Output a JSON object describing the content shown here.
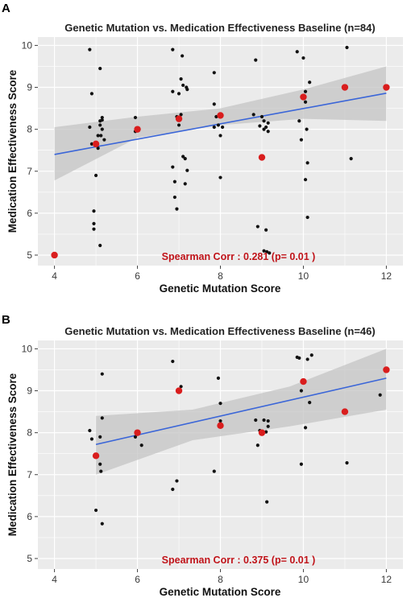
{
  "chart_data": [
    {
      "type": "scatter",
      "panel_label": "A",
      "title": "Genetic Mutation vs. Medication Effectiveness Baseline (n=84)",
      "xlabel": "Genetic Mutation Score",
      "ylabel": "Medication Effectiveness Score",
      "xlim": [
        3.6,
        12.4
      ],
      "ylim": [
        4.75,
        10.2
      ],
      "xticks": [
        4,
        6,
        8,
        10,
        12
      ],
      "yticks": [
        5,
        6,
        7,
        8,
        9,
        10
      ],
      "grid": true,
      "background": "#ebebeb",
      "annotation": "Spearman Corr :  0.281 (p= 0.01 )",
      "trend": {
        "x0": 4,
        "y0": 7.4,
        "x1": 12,
        "y1": 8.86,
        "ci_lower": [
          6.78,
          7.8,
          8.1,
          8.25,
          8.2
        ],
        "ci_upper": [
          8.05,
          8.3,
          8.5,
          8.95,
          9.5
        ],
        "ci_x": [
          4,
          6,
          8,
          10,
          12
        ],
        "color": "#3b66d8"
      },
      "points": [
        {
          "x": 4.85,
          "y": 9.9
        },
        {
          "x": 4.85,
          "y": 8.05
        },
        {
          "x": 4.9,
          "y": 8.85
        },
        {
          "x": 4.9,
          "y": 7.65
        },
        {
          "x": 4.95,
          "y": 6.05
        },
        {
          "x": 4.95,
          "y": 5.75
        },
        {
          "x": 4.95,
          "y": 5.62
        },
        {
          "x": 5.0,
          "y": 6.9
        },
        {
          "x": 5.05,
          "y": 7.85
        },
        {
          "x": 5.05,
          "y": 7.55
        },
        {
          "x": 5.1,
          "y": 9.45
        },
        {
          "x": 5.1,
          "y": 8.2
        },
        {
          "x": 5.1,
          "y": 8.1
        },
        {
          "x": 5.1,
          "y": 5.23
        },
        {
          "x": 5.12,
          "y": 7.85
        },
        {
          "x": 5.15,
          "y": 8.28
        },
        {
          "x": 5.15,
          "y": 8.22
        },
        {
          "x": 5.15,
          "y": 8.0
        },
        {
          "x": 5.2,
          "y": 7.75
        },
        {
          "x": 5.95,
          "y": 8.28
        },
        {
          "x": 5.95,
          "y": 7.95
        },
        {
          "x": 6.85,
          "y": 9.9
        },
        {
          "x": 6.85,
          "y": 8.9
        },
        {
          "x": 6.85,
          "y": 7.1
        },
        {
          "x": 6.9,
          "y": 6.75
        },
        {
          "x": 6.9,
          "y": 6.38
        },
        {
          "x": 6.95,
          "y": 6.1
        },
        {
          "x": 6.95,
          "y": 8.3
        },
        {
          "x": 7.0,
          "y": 8.1
        },
        {
          "x": 7.0,
          "y": 8.85
        },
        {
          "x": 7.05,
          "y": 9.2
        },
        {
          "x": 7.05,
          "y": 8.35
        },
        {
          "x": 7.08,
          "y": 9.75
        },
        {
          "x": 7.1,
          "y": 9.05
        },
        {
          "x": 7.1,
          "y": 7.35
        },
        {
          "x": 7.15,
          "y": 7.3
        },
        {
          "x": 7.15,
          "y": 6.7
        },
        {
          "x": 7.18,
          "y": 9.0
        },
        {
          "x": 7.2,
          "y": 8.95
        },
        {
          "x": 7.2,
          "y": 7.02
        },
        {
          "x": 7.85,
          "y": 9.35
        },
        {
          "x": 7.85,
          "y": 8.6
        },
        {
          "x": 7.85,
          "y": 8.05
        },
        {
          "x": 7.9,
          "y": 8.3
        },
        {
          "x": 7.95,
          "y": 8.1
        },
        {
          "x": 8.0,
          "y": 7.85
        },
        {
          "x": 8.0,
          "y": 6.85
        },
        {
          "x": 8.05,
          "y": 8.05
        },
        {
          "x": 8.8,
          "y": 8.35
        },
        {
          "x": 8.85,
          "y": 9.65
        },
        {
          "x": 8.9,
          "y": 5.68
        },
        {
          "x": 8.95,
          "y": 8.08
        },
        {
          "x": 9.0,
          "y": 8.3
        },
        {
          "x": 9.05,
          "y": 8.2
        },
        {
          "x": 9.05,
          "y": 8.0
        },
        {
          "x": 9.05,
          "y": 5.1
        },
        {
          "x": 9.1,
          "y": 8.05
        },
        {
          "x": 9.1,
          "y": 5.6
        },
        {
          "x": 9.12,
          "y": 5.08
        },
        {
          "x": 9.15,
          "y": 8.15
        },
        {
          "x": 9.15,
          "y": 7.95
        },
        {
          "x": 9.18,
          "y": 5.05
        },
        {
          "x": 9.85,
          "y": 9.85
        },
        {
          "x": 9.9,
          "y": 8.2
        },
        {
          "x": 9.95,
          "y": 7.75
        },
        {
          "x": 10.0,
          "y": 9.7
        },
        {
          "x": 10.05,
          "y": 8.9
        },
        {
          "x": 10.05,
          "y": 8.65
        },
        {
          "x": 10.05,
          "y": 6.8
        },
        {
          "x": 10.08,
          "y": 8.0
        },
        {
          "x": 10.1,
          "y": 7.2
        },
        {
          "x": 10.1,
          "y": 5.9
        },
        {
          "x": 10.15,
          "y": 9.12
        },
        {
          "x": 11.05,
          "y": 9.95
        },
        {
          "x": 11.15,
          "y": 7.3
        }
      ],
      "means": [
        {
          "x": 4,
          "y": 5.0
        },
        {
          "x": 5,
          "y": 7.65
        },
        {
          "x": 6,
          "y": 8.0
        },
        {
          "x": 7,
          "y": 8.25
        },
        {
          "x": 8,
          "y": 8.33
        },
        {
          "x": 9,
          "y": 7.33
        },
        {
          "x": 10,
          "y": 8.77
        },
        {
          "x": 11,
          "y": 9.0
        },
        {
          "x": 12,
          "y": 9.0
        }
      ]
    },
    {
      "type": "scatter",
      "panel_label": "B",
      "title": "Genetic Mutation vs. Medication Effectiveness Baseline (n=46)",
      "xlabel": "Genetic Mutation Score",
      "ylabel": "Medication Effectiveness Score",
      "xlim": [
        3.6,
        12.4
      ],
      "ylim": [
        4.75,
        10.2
      ],
      "xticks": [
        4,
        6,
        8,
        10,
        12
      ],
      "yticks": [
        5,
        6,
        7,
        8,
        9,
        10
      ],
      "grid": true,
      "background": "#ebebeb",
      "annotation": "Spearman Corr :  0.375 (p= 0.01 )",
      "trend": {
        "x0": 5,
        "y0": 7.72,
        "x1": 12,
        "y1": 9.3,
        "ci_lower": [
          7.0,
          7.82,
          8.15,
          8.55
        ],
        "ci_upper": [
          8.4,
          8.55,
          9.1,
          10.0
        ],
        "ci_x": [
          5,
          7.33,
          9.67,
          12
        ],
        "color": "#3b66d8"
      },
      "points": [
        {
          "x": 4.85,
          "y": 8.05
        },
        {
          "x": 4.9,
          "y": 7.85
        },
        {
          "x": 5.0,
          "y": 6.15
        },
        {
          "x": 5.1,
          "y": 7.9
        },
        {
          "x": 5.1,
          "y": 7.25
        },
        {
          "x": 5.12,
          "y": 7.08
        },
        {
          "x": 5.15,
          "y": 9.4
        },
        {
          "x": 5.15,
          "y": 8.35
        },
        {
          "x": 5.15,
          "y": 5.83
        },
        {
          "x": 5.95,
          "y": 7.9
        },
        {
          "x": 6.1,
          "y": 7.7
        },
        {
          "x": 6.85,
          "y": 9.7
        },
        {
          "x": 6.85,
          "y": 6.65
        },
        {
          "x": 6.95,
          "y": 6.85
        },
        {
          "x": 7.05,
          "y": 9.1
        },
        {
          "x": 7.85,
          "y": 7.08
        },
        {
          "x": 7.95,
          "y": 9.3
        },
        {
          "x": 8.0,
          "y": 8.7
        },
        {
          "x": 8.0,
          "y": 8.28
        },
        {
          "x": 8.85,
          "y": 8.3
        },
        {
          "x": 8.9,
          "y": 7.7
        },
        {
          "x": 8.95,
          "y": 8.05
        },
        {
          "x": 9.05,
          "y": 8.3
        },
        {
          "x": 9.1,
          "y": 8.02
        },
        {
          "x": 9.12,
          "y": 6.35
        },
        {
          "x": 9.15,
          "y": 8.28
        },
        {
          "x": 9.15,
          "y": 8.15
        },
        {
          "x": 9.85,
          "y": 9.8
        },
        {
          "x": 9.9,
          "y": 9.78
        },
        {
          "x": 9.95,
          "y": 9.0
        },
        {
          "x": 9.95,
          "y": 7.25
        },
        {
          "x": 10.05,
          "y": 8.12
        },
        {
          "x": 10.1,
          "y": 9.75
        },
        {
          "x": 10.15,
          "y": 8.72
        },
        {
          "x": 10.2,
          "y": 9.85
        },
        {
          "x": 11.05,
          "y": 7.28
        },
        {
          "x": 11.85,
          "y": 8.9
        }
      ],
      "means": [
        {
          "x": 5,
          "y": 7.45
        },
        {
          "x": 6,
          "y": 8.0
        },
        {
          "x": 7,
          "y": 9.0
        },
        {
          "x": 8,
          "y": 8.17
        },
        {
          "x": 9,
          "y": 8.0
        },
        {
          "x": 10,
          "y": 9.22
        },
        {
          "x": 11,
          "y": 8.5
        },
        {
          "x": 12,
          "y": 9.5
        }
      ]
    }
  ],
  "colors": {
    "panel_bg": "#ebebeb",
    "grid": "#ffffff",
    "ci_band": "#c4c4c4",
    "point": "#111111",
    "mean_point": "#d91d1d",
    "annotation": "#c0141a"
  }
}
